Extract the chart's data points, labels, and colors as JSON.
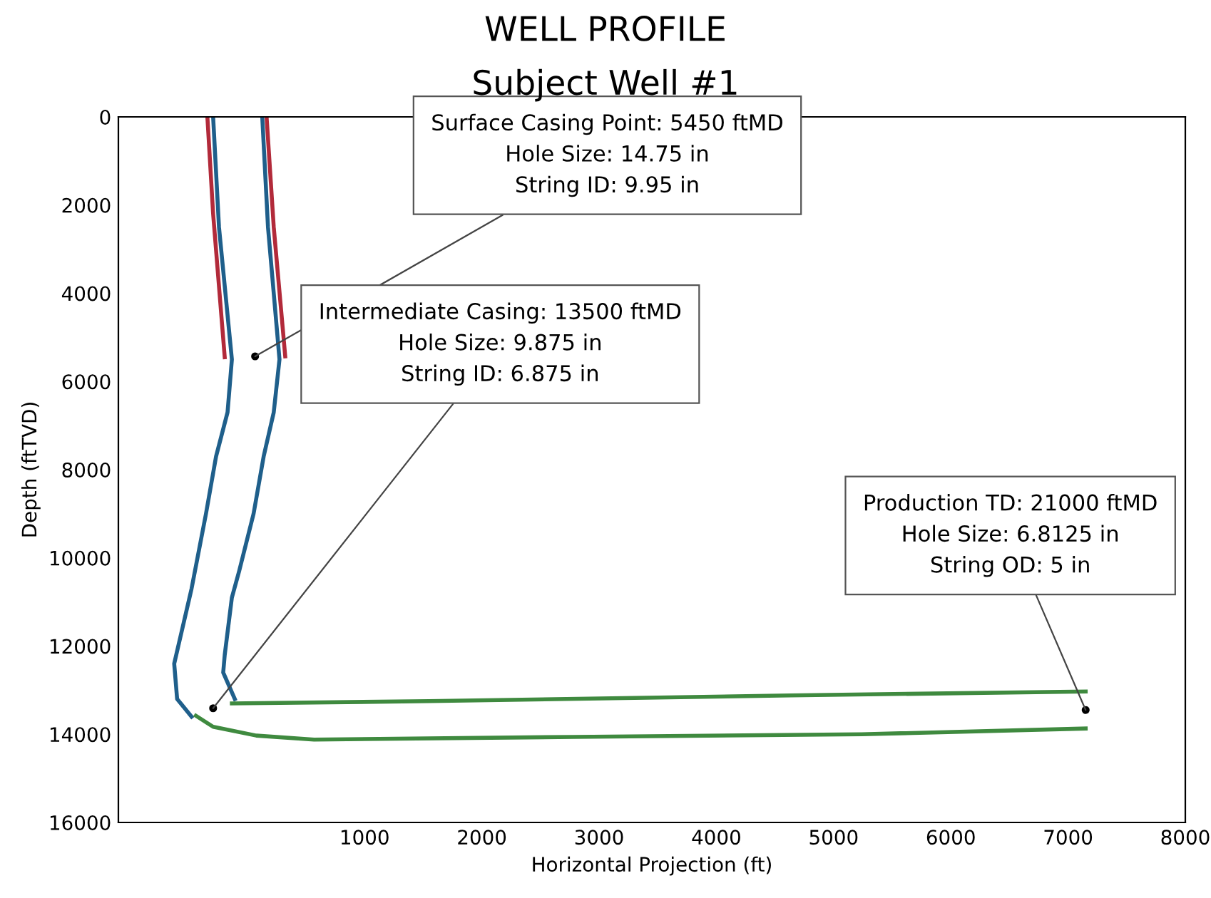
{
  "chart_data": {
    "type": "line",
    "title": "WELL PROFILE",
    "subtitle": "Subject Well #1",
    "xlabel": "Horizontal Projection (ft)",
    "ylabel": "Depth (ftTVD)",
    "xlim": [
      -1100,
      8000
    ],
    "xticks": [
      1000,
      2000,
      3000,
      4000,
      5000,
      6000,
      7000,
      8000
    ],
    "ylim": [
      16000,
      0
    ],
    "yticks": [
      0,
      2000,
      4000,
      6000,
      8000,
      10000,
      12000,
      14000,
      16000
    ],
    "grid": false,
    "legend": false,
    "marker": "none",
    "line_style": "solid",
    "series": [
      {
        "color": "#b22a3a",
        "x": [
          -341,
          -292,
          -193
        ],
        "values": [
          0,
          2200,
          5450
        ]
      },
      {
        "color": "#b22a3a",
        "x": [
          164,
          225,
          323
        ],
        "values": [
          0,
          2500,
          5430
        ]
      },
      {
        "color": "#1f5f8b",
        "x": [
          -292,
          -242,
          -132,
          -169,
          -267,
          -353,
          -476,
          -624,
          -599,
          -476
        ],
        "values": [
          0,
          2500,
          5500,
          6700,
          7700,
          9000,
          10700,
          12400,
          13200,
          13600
        ]
      },
      {
        "color": "#1f5f8b",
        "x": [
          127,
          176,
          274,
          225,
          139,
          53,
          -70,
          -132,
          -193,
          -206,
          -107
        ],
        "values": [
          0,
          2500,
          5500,
          6700,
          7700,
          9000,
          10300,
          10900,
          12200,
          12600,
          13200
        ]
      },
      {
        "color": "#3f8a3f",
        "x": [
          -132,
          1550,
          4630,
          7150
        ],
        "values": [
          13300,
          13250,
          13120,
          13030
        ]
      },
      {
        "color": "#3f8a3f",
        "x": [
          -439,
          -292,
          77,
          569,
          2780,
          5240,
          7150
        ],
        "values": [
          13580,
          13830,
          14030,
          14120,
          14060,
          14000,
          13870
        ]
      }
    ],
    "annotations": [
      {
        "text": "Surface Casing Point: 5450 ftMD\nHole Size: 14.75 in\nString ID: 9.95 in",
        "x": 66,
        "y": 5430
      },
      {
        "text": "Intermediate Casing: 13500 ftMD\nHole Size: 9.875 in\nString ID: 6.875 in",
        "x": -292,
        "y": 13410
      },
      {
        "text": "Production TD: 21000 ftMD\nHole Size: 6.8125 in\nString OD: 5 in",
        "x": 7150,
        "y": 13450
      }
    ]
  }
}
